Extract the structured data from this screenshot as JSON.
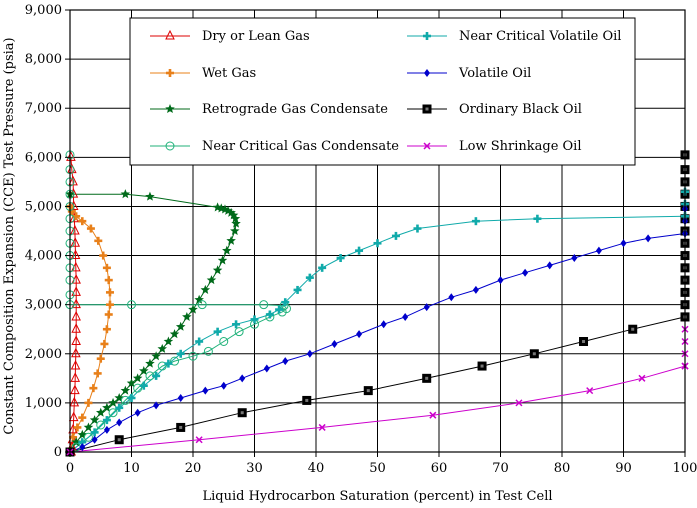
{
  "chart_data": {
    "type": "line",
    "title": "",
    "xlabel": "Liquid Hydrocarbon Saturation (percent) in Test Cell",
    "ylabel": "Constant Composition Expansion (CCE) Test Pressure (psia)",
    "xlim": [
      0,
      100
    ],
    "ylim": [
      0,
      9000
    ],
    "xticks": [
      0,
      10,
      20,
      30,
      40,
      50,
      60,
      70,
      80,
      90,
      100
    ],
    "yticks": [
      0,
      1000,
      2000,
      3000,
      4000,
      5000,
      6000,
      7000,
      8000,
      9000
    ],
    "xtick_labels": [
      "0",
      "10",
      "20",
      "30",
      "40",
      "50",
      "60",
      "70",
      "80",
      "90",
      "100"
    ],
    "ytick_labels": [
      "0",
      "1,000",
      "2,000",
      "3,000",
      "4,000",
      "5,000",
      "6,000",
      "7,000",
      "8,000",
      "9,000"
    ],
    "grid": true,
    "legend_position": "top-center",
    "series": [
      {
        "name": "Dry or Lean Gas",
        "color": "#dd0000",
        "marker": "triangle",
        "points": [
          [
            0.2,
            0
          ],
          [
            0.3,
            100
          ],
          [
            0.4,
            250
          ],
          [
            0.5,
            450
          ],
          [
            0.6,
            700
          ],
          [
            0.7,
            1000
          ],
          [
            0.8,
            1250
          ],
          [
            0.85,
            1500
          ],
          [
            0.9,
            1750
          ],
          [
            0.95,
            2000
          ],
          [
            1.0,
            2250
          ],
          [
            1.0,
            2500
          ],
          [
            1.0,
            2750
          ],
          [
            1.0,
            3000
          ],
          [
            1.0,
            3250
          ],
          [
            1.0,
            3500
          ],
          [
            0.95,
            3750
          ],
          [
            0.9,
            4000
          ],
          [
            0.85,
            4250
          ],
          [
            0.8,
            4500
          ],
          [
            0.7,
            4750
          ],
          [
            0.6,
            5000
          ],
          [
            0.55,
            5250
          ],
          [
            0.5,
            5500
          ],
          [
            0.3,
            5750
          ],
          [
            0.15,
            6000
          ]
        ]
      },
      {
        "name": "Wet Gas",
        "color": "#e8801a",
        "marker": "cross",
        "points": [
          [
            0,
            0
          ],
          [
            0.5,
            300
          ],
          [
            1.2,
            500
          ],
          [
            2,
            700
          ],
          [
            3,
            1000
          ],
          [
            3.8,
            1300
          ],
          [
            4.5,
            1600
          ],
          [
            5,
            1900
          ],
          [
            5.6,
            2200
          ],
          [
            6,
            2500
          ],
          [
            6.3,
            2800
          ],
          [
            6.5,
            3000
          ],
          [
            6.5,
            3250
          ],
          [
            6.3,
            3500
          ],
          [
            6,
            3750
          ],
          [
            5.4,
            4000
          ],
          [
            4.6,
            4300
          ],
          [
            3.4,
            4550
          ],
          [
            2,
            4700
          ],
          [
            1,
            4800
          ],
          [
            0.3,
            4900
          ],
          [
            0,
            5000
          ]
        ]
      },
      {
        "name": "Retrograde Gas Condensate",
        "color": "#006a1a",
        "marker": "star",
        "points": [
          [
            0,
            0
          ],
          [
            1,
            200
          ],
          [
            2,
            350
          ],
          [
            3,
            500
          ],
          [
            4,
            650
          ],
          [
            5,
            800
          ],
          [
            6,
            900
          ],
          [
            7,
            1000
          ],
          [
            8,
            1100
          ],
          [
            9,
            1250
          ],
          [
            10,
            1400
          ],
          [
            11,
            1500
          ],
          [
            12,
            1650
          ],
          [
            13,
            1800
          ],
          [
            14,
            1950
          ],
          [
            15,
            2100
          ],
          [
            16,
            2250
          ],
          [
            17,
            2400
          ],
          [
            18,
            2550
          ],
          [
            19,
            2750
          ],
          [
            20,
            2900
          ],
          [
            21,
            3100
          ],
          [
            22,
            3300
          ],
          [
            23,
            3500
          ],
          [
            24,
            3700
          ],
          [
            24.8,
            3900
          ],
          [
            25.5,
            4100
          ],
          [
            26.2,
            4300
          ],
          [
            26.8,
            4500
          ],
          [
            27,
            4650
          ],
          [
            26.9,
            4750
          ],
          [
            26.6,
            4820
          ],
          [
            26.2,
            4870
          ],
          [
            25.7,
            4910
          ],
          [
            25.2,
            4940
          ],
          [
            24.6,
            4960
          ],
          [
            24,
            4980
          ],
          [
            13,
            5200
          ],
          [
            9,
            5250
          ],
          [
            0,
            5250
          ]
        ]
      },
      {
        "name": "Near Critical Gas Condensate",
        "color": "#20b27a",
        "marker": "circle",
        "points": [
          [
            0,
            0
          ],
          [
            1,
            100
          ],
          [
            3,
            300
          ],
          [
            5,
            550
          ],
          [
            7,
            800
          ],
          [
            9,
            1050
          ],
          [
            11,
            1300
          ],
          [
            13,
            1550
          ],
          [
            15,
            1750
          ],
          [
            17,
            1850
          ],
          [
            20,
            1950
          ],
          [
            22.5,
            2050
          ],
          [
            25,
            2250
          ],
          [
            27.5,
            2450
          ],
          [
            30,
            2600
          ],
          [
            32.5,
            2750
          ],
          [
            34.5,
            2850
          ],
          [
            35.2,
            2920
          ],
          [
            34.8,
            2980
          ],
          [
            31.5,
            3000
          ],
          [
            21.5,
            3000
          ],
          [
            10,
            3000
          ],
          [
            0,
            3000
          ],
          [
            0,
            3200
          ],
          [
            0,
            3500
          ],
          [
            0,
            3750
          ],
          [
            0,
            4000
          ],
          [
            0,
            4250
          ],
          [
            0,
            4500
          ],
          [
            0,
            4750
          ],
          [
            0,
            5000
          ],
          [
            0,
            5250
          ],
          [
            0,
            5500
          ],
          [
            0,
            5750
          ],
          [
            0,
            6050
          ]
        ]
      },
      {
        "name": "Near Critical Volatile Oil",
        "color": "#10aaaa",
        "marker": "cross",
        "points": [
          [
            0,
            0
          ],
          [
            2,
            200
          ],
          [
            4,
            400
          ],
          [
            6,
            650
          ],
          [
            8,
            900
          ],
          [
            10,
            1100
          ],
          [
            12,
            1350
          ],
          [
            14,
            1550
          ],
          [
            16,
            1800
          ],
          [
            18,
            2000
          ],
          [
            21,
            2250
          ],
          [
            24,
            2450
          ],
          [
            27,
            2600
          ],
          [
            30,
            2700
          ],
          [
            32.5,
            2800
          ],
          [
            34,
            2900
          ],
          [
            35,
            3050
          ],
          [
            37,
            3300
          ],
          [
            39,
            3550
          ],
          [
            41,
            3750
          ],
          [
            44,
            3950
          ],
          [
            47,
            4100
          ],
          [
            50,
            4250
          ],
          [
            53,
            4400
          ],
          [
            56.5,
            4550
          ],
          [
            66,
            4700
          ],
          [
            76,
            4750
          ],
          [
            100,
            4800
          ]
        ]
      },
      {
        "name": "Volatile Oil",
        "color": "#0000cc",
        "marker": "diamond",
        "points": [
          [
            0,
            0
          ],
          [
            2,
            100
          ],
          [
            4,
            250
          ],
          [
            6,
            450
          ],
          [
            8,
            600
          ],
          [
            11,
            800
          ],
          [
            14,
            950
          ],
          [
            18,
            1100
          ],
          [
            22,
            1250
          ],
          [
            25,
            1350
          ],
          [
            28,
            1500
          ],
          [
            32,
            1700
          ],
          [
            35,
            1850
          ],
          [
            39,
            2000
          ],
          [
            43,
            2200
          ],
          [
            47,
            2400
          ],
          [
            51,
            2600
          ],
          [
            54.5,
            2750
          ],
          [
            58,
            2950
          ],
          [
            62,
            3150
          ],
          [
            66,
            3300
          ],
          [
            70,
            3500
          ],
          [
            74,
            3650
          ],
          [
            78,
            3800
          ],
          [
            82,
            3950
          ],
          [
            86,
            4100
          ],
          [
            90,
            4250
          ],
          [
            94,
            4350
          ],
          [
            100,
            4450
          ]
        ]
      },
      {
        "name": "Ordinary Black Oil",
        "color": "#000000",
        "marker": "square",
        "points": [
          [
            0,
            0
          ],
          [
            8,
            250
          ],
          [
            18,
            500
          ],
          [
            28,
            800
          ],
          [
            38.5,
            1050
          ],
          [
            48.5,
            1250
          ],
          [
            58,
            1500
          ],
          [
            67,
            1750
          ],
          [
            75.5,
            2000
          ],
          [
            83.5,
            2250
          ],
          [
            91.5,
            2500
          ],
          [
            100,
            2750
          ]
        ]
      },
      {
        "name": "Low Shrinkage Oil",
        "color": "#cc00cc",
        "marker": "x",
        "points": [
          [
            0,
            0
          ],
          [
            21,
            250
          ],
          [
            41,
            500
          ],
          [
            59,
            750
          ],
          [
            73,
            1000
          ],
          [
            84.5,
            1250
          ],
          [
            93,
            1500
          ],
          [
            100,
            1750
          ]
        ]
      }
    ],
    "vertical_markers_at_100": {
      "Ordinary Black Oil": [
        2750,
        3000,
        3250,
        3500,
        3750,
        4000,
        4250,
        4500,
        4750,
        5000,
        5250,
        5500,
        5750,
        6050
      ],
      "Near Critical Volatile Oil": [
        4800,
        5050,
        5300
      ],
      "Volatile Oil": [
        4450,
        4700,
        4950
      ],
      "Low Shrinkage Oil": [
        1750,
        2000,
        2250,
        2500
      ]
    }
  }
}
